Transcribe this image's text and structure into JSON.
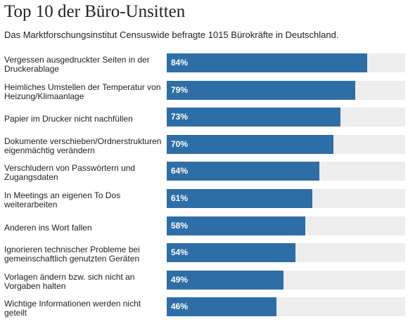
{
  "title": "Top 10 der Büro-Unsitten",
  "subtitle": "Das Marktforschungsinstitut Censuswide befragte 1015 Bürokräfte in Deutschland.",
  "colors": {
    "bar": "#2e6ea6",
    "track": "#ededed"
  },
  "chart_data": {
    "type": "bar",
    "orientation": "horizontal",
    "title": "Top 10 der Büro-Unsitten",
    "subtitle": "Das Marktforschungsinstitut Censuswide befragte 1015 Bürokräfte in Deutschland.",
    "xlim": [
      0,
      100
    ],
    "grid": false,
    "categories": [
      "Vergessen ausgedruckter Seiten in der Druckerablage",
      "Heimliches Umstellen der Temperatur von Heizung/Klimaanlage",
      "Papier im Drucker nicht nachfüllen",
      "Dokumente verschieben/Ordnerstrukturen eigenmächtig verändern",
      "Verschludern von Passwörtern und Zugangsdaten",
      "In Meetings an eigenen To Dos weiterarbeiten",
      "Anderen ins Wort fallen",
      "Ignorieren technischer Probleme bei gemeinschaftlich genutzten Geräten",
      "Vorlagen ändern bzw. sich nicht an Vorgaben halten",
      "Wichtige Informationen werden nicht geteilt"
    ],
    "values": [
      84,
      79,
      73,
      70,
      64,
      61,
      58,
      54,
      49,
      46
    ],
    "value_labels": [
      "84%",
      "79%",
      "73%",
      "70%",
      "64%",
      "61%",
      "58%",
      "54%",
      "49%",
      "46%"
    ]
  }
}
